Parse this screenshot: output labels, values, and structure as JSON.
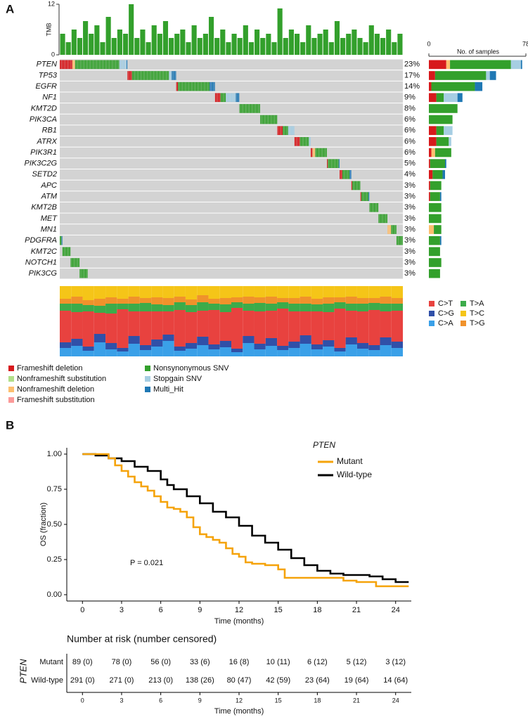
{
  "chart_data": [
    {
      "type": "oncoplot",
      "panel": "A",
      "tmb": {
        "axis_label": "TMB",
        "ylim": [
          0,
          12
        ],
        "yticks": [
          0,
          12
        ],
        "color": "#33a02c",
        "values": [
          5,
          3,
          6,
          4,
          8,
          5,
          7,
          3,
          9,
          4,
          6,
          5,
          12,
          4,
          6,
          3,
          7,
          5,
          8,
          4,
          5,
          6,
          3,
          7,
          4,
          5,
          9,
          4,
          6,
          3,
          5,
          4,
          7,
          3,
          6,
          4,
          5,
          3,
          11,
          4,
          6,
          5,
          3,
          7,
          4,
          5,
          6,
          3,
          8,
          4,
          5,
          6,
          4,
          3,
          7,
          5,
          4,
          6,
          3,
          5
        ]
      },
      "genes": [
        "PTEN",
        "TP53",
        "EGFR",
        "NF1",
        "KMT2D",
        "PIK3CA",
        "RB1",
        "ATRX",
        "PIK3R1",
        "PIK3C2G",
        "SETD2",
        "APC",
        "ATM",
        "KMT2B",
        "MET",
        "MN1",
        "PDGFRA",
        "KMT2C",
        "NOTCH1",
        "PIK3CG"
      ],
      "percents": [
        23,
        17,
        14,
        9,
        8,
        6,
        6,
        6,
        6,
        5,
        4,
        3,
        3,
        3,
        3,
        3,
        3,
        3,
        3,
        3
      ],
      "percent_labels": [
        "23%",
        "17%",
        "14%",
        "9%",
        "8%",
        "6%",
        "6%",
        "6%",
        "6%",
        "5%",
        "4%",
        "3%",
        "3%",
        "3%",
        "3%",
        "3%",
        "3%",
        "3%",
        "3%",
        "3%"
      ],
      "mutation_types": [
        {
          "name": "Frameshift deletion",
          "color": "#d7191c"
        },
        {
          "name": "Nonframeshift substitution",
          "color": "#b2df8a"
        },
        {
          "name": "Nonframeshift deletion",
          "color": "#fdbf6f"
        },
        {
          "name": "Frameshift substitution",
          "color": "#fb9a99"
        },
        {
          "name": "Nonsynonymous SNV",
          "color": "#33a02c"
        },
        {
          "name": "Stopgain SNV",
          "color": "#a6cee3"
        },
        {
          "name": "Multi_Hit",
          "color": "#1f78b4"
        }
      ],
      "counts": [
        [
          14,
          0,
          3,
          0,
          49,
          8,
          1
        ],
        [
          5,
          0,
          0,
          0,
          41,
          3,
          5
        ],
        [
          2,
          0,
          0,
          0,
          35,
          0,
          6
        ],
        [
          6,
          0,
          0,
          0,
          6,
          11,
          4
        ],
        [
          0,
          0,
          0,
          0,
          23,
          0,
          0
        ],
        [
          0,
          0,
          0,
          0,
          19,
          0,
          0
        ],
        [
          6,
          0,
          0,
          0,
          6,
          7,
          0
        ],
        [
          6,
          0,
          0,
          0,
          10,
          2,
          0
        ],
        [
          2,
          0,
          3,
          0,
          13,
          0,
          0
        ],
        [
          1,
          0,
          0,
          0,
          12,
          0,
          1
        ],
        [
          3,
          0,
          0,
          0,
          8,
          0,
          2
        ],
        [
          1,
          0,
          0,
          0,
          9,
          0,
          0
        ],
        [
          1,
          0,
          0,
          0,
          8,
          0,
          1
        ],
        [
          0,
          0,
          0,
          0,
          10,
          0,
          0
        ],
        [
          0,
          0,
          0,
          0,
          10,
          0,
          0
        ],
        [
          0,
          0,
          4,
          0,
          6,
          0,
          0
        ],
        [
          0,
          0,
          0,
          0,
          9,
          0,
          1
        ],
        [
          0,
          0,
          0,
          0,
          9,
          0,
          0
        ],
        [
          0,
          0,
          0,
          0,
          10,
          0,
          0
        ],
        [
          0,
          0,
          0,
          0,
          9,
          0,
          0
        ]
      ],
      "count_axis": {
        "title": "No. of samples",
        "xlim": [
          0,
          78
        ],
        "xticks": [
          0,
          78
        ]
      },
      "spectrum": {
        "types": [
          {
            "name": "C>T",
            "color": "#e8423f"
          },
          {
            "name": "C>G",
            "color": "#3050a8"
          },
          {
            "name": "C>A",
            "color": "#3aa0e8"
          },
          {
            "name": "T>A",
            "color": "#3cab4a"
          },
          {
            "name": "T>C",
            "color": "#f5c518"
          },
          {
            "name": "T>G",
            "color": "#f0922b"
          }
        ],
        "samples": [
          [
            45,
            8,
            12,
            10,
            18,
            7
          ],
          [
            38,
            10,
            15,
            12,
            15,
            10
          ],
          [
            50,
            6,
            8,
            9,
            20,
            7
          ],
          [
            30,
            12,
            20,
            10,
            18,
            10
          ],
          [
            42,
            9,
            10,
            14,
            16,
            9
          ],
          [
            55,
            5,
            7,
            8,
            18,
            7
          ],
          [
            35,
            11,
            18,
            11,
            15,
            10
          ],
          [
            48,
            7,
            9,
            12,
            17,
            7
          ],
          [
            40,
            10,
            14,
            10,
            16,
            10
          ],
          [
            33,
            9,
            22,
            9,
            17,
            10
          ],
          [
            52,
            6,
            8,
            11,
            15,
            8
          ],
          [
            44,
            8,
            11,
            10,
            19,
            8
          ],
          [
            37,
            12,
            16,
            12,
            13,
            10
          ],
          [
            49,
            7,
            10,
            9,
            18,
            7
          ],
          [
            41,
            9,
            13,
            11,
            17,
            9
          ],
          [
            58,
            5,
            6,
            8,
            16,
            7
          ],
          [
            36,
            10,
            19,
            10,
            15,
            10
          ],
          [
            46,
            8,
            10,
            12,
            16,
            8
          ],
          [
            39,
            11,
            15,
            10,
            15,
            10
          ],
          [
            53,
            6,
            9,
            9,
            17,
            6
          ],
          [
            43,
            9,
            12,
            11,
            17,
            8
          ],
          [
            34,
            12,
            18,
            11,
            15,
            10
          ],
          [
            47,
            7,
            10,
            10,
            18,
            8
          ],
          [
            40,
            9,
            14,
            12,
            16,
            9
          ],
          [
            56,
            5,
            7,
            9,
            16,
            7
          ],
          [
            38,
            10,
            17,
            10,
            15,
            10
          ],
          [
            45,
            8,
            11,
            11,
            17,
            8
          ],
          [
            50,
            7,
            9,
            10,
            17,
            7
          ],
          [
            37,
            11,
            16,
            11,
            15,
            10
          ],
          [
            44,
            9,
            12,
            10,
            17,
            8
          ]
        ]
      }
    },
    {
      "type": "km",
      "panel": "B",
      "y_label": "OS (fraction)",
      "x_label": "Time (months)",
      "xlim": [
        -1.2,
        25.2
      ],
      "xticks": [
        0,
        3,
        6,
        9,
        12,
        15,
        18,
        21,
        24
      ],
      "ylim": [
        -0.045,
        1.045
      ],
      "yticks": [
        {
          "value": 0,
          "label": "0.00"
        },
        {
          "value": 0.25,
          "label": "0.25"
        },
        {
          "value": 0.5,
          "label": "0.50"
        },
        {
          "value": 0.75,
          "label": "0.75"
        },
        {
          "value": 1,
          "label": "1.00"
        }
      ],
      "legend_title": "PTEN",
      "annotation": "P = 0.021",
      "series": [
        {
          "name": "Mutant",
          "color": "#f5a30a",
          "x": [
            0,
            1.5,
            2,
            2.5,
            3,
            3.5,
            4,
            4.5,
            5,
            5.5,
            6,
            6.5,
            7,
            7.5,
            8,
            8.5,
            9,
            9.5,
            10,
            10.5,
            11,
            11.5,
            12,
            12.5,
            13,
            14,
            15,
            15.5,
            17,
            19,
            20,
            21,
            22,
            22.5,
            25
          ],
          "values": [
            1,
            1,
            0.97,
            0.92,
            0.88,
            0.84,
            0.8,
            0.77,
            0.74,
            0.7,
            0.66,
            0.62,
            0.61,
            0.59,
            0.55,
            0.48,
            0.43,
            0.41,
            0.39,
            0.37,
            0.33,
            0.29,
            0.27,
            0.23,
            0.22,
            0.21,
            0.18,
            0.12,
            0.12,
            0.12,
            0.1,
            0.09,
            0.09,
            0.06,
            0.06
          ]
        },
        {
          "name": "Wild-type",
          "color": "#000000",
          "x": [
            0,
            1,
            2,
            3,
            4,
            5,
            6,
            6.5,
            7,
            8,
            9,
            10,
            11,
            12,
            13,
            14,
            15,
            16,
            17,
            18,
            19,
            20,
            21,
            22,
            23,
            24,
            25
          ],
          "values": [
            1,
            0.99,
            0.97,
            0.95,
            0.91,
            0.88,
            0.82,
            0.78,
            0.75,
            0.7,
            0.65,
            0.59,
            0.55,
            0.49,
            0.42,
            0.37,
            0.32,
            0.26,
            0.21,
            0.17,
            0.15,
            0.14,
            0.14,
            0.13,
            0.11,
            0.09,
            0.09
          ]
        }
      ],
      "risk_table": {
        "title": "Number at risk (number censored)",
        "group_label": "PTEN",
        "x_label": "Time (months)",
        "xticks": [
          0,
          3,
          6,
          9,
          12,
          15,
          18,
          21,
          24
        ],
        "rows": [
          {
            "name": "Mutant",
            "color": "#f5a30a",
            "values": [
              89,
              78,
              56,
              33,
              16,
              10,
              6,
              5,
              3
            ],
            "value_labels": [
              "89 (0)",
              "78 (0)",
              "56 (0)",
              "33 (6)",
              "16 (8)",
              "10 (11)",
              "6 (12)",
              "5 (12)",
              "3 (12)"
            ]
          },
          {
            "name": "Wild-type",
            "color": "#000000",
            "values": [
              291,
              271,
              213,
              138,
              80,
              42,
              23,
              19,
              14
            ],
            "value_labels": [
              "291 (0)",
              "271 (0)",
              "213 (0)",
              "138 (26)",
              "80 (47)",
              "42 (59)",
              "23 (64)",
              "19 (64)",
              "14 (64)"
            ]
          }
        ]
      }
    }
  ]
}
